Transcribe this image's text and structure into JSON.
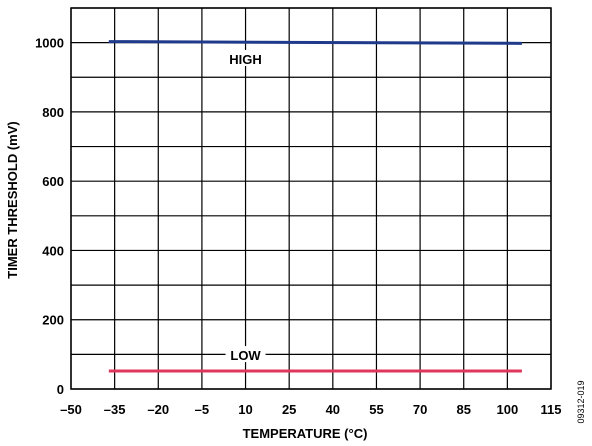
{
  "chart_data": {
    "type": "line",
    "xlabel": "TEMPERATURE (°C)",
    "ylabel": "TIMER THRESHOLD (mV)",
    "xlim": [
      -50,
      115
    ],
    "ylim": [
      0,
      1100
    ],
    "x_ticks": [
      -50,
      -35,
      -20,
      -5,
      10,
      25,
      40,
      55,
      70,
      85,
      100,
      115
    ],
    "x_tick_labels": [
      "–50",
      "–35",
      "–20",
      "–5",
      "10",
      "25",
      "40",
      "55",
      "70",
      "85",
      "100",
      "115"
    ],
    "y_ticks": [
      0,
      200,
      400,
      600,
      800,
      1000
    ],
    "y_tick_labels": [
      "0",
      "200",
      "400",
      "600",
      "800",
      "1000"
    ],
    "y_grid_values": [
      0,
      100,
      200,
      300,
      400,
      500,
      600,
      700,
      800,
      900,
      1000,
      1100
    ],
    "grid": true,
    "series": [
      {
        "name": "HIGH",
        "color": "#1f3a8a",
        "x": [
          -37,
          105
        ],
        "y": [
          1003,
          998
        ],
        "label_at": [
          10,
          950
        ]
      },
      {
        "name": "LOW",
        "color": "#e0365c",
        "x": [
          -37,
          105
        ],
        "y": [
          52,
          52
        ],
        "label_at": [
          10,
          95
        ]
      }
    ]
  },
  "figure_id": "09312-019"
}
